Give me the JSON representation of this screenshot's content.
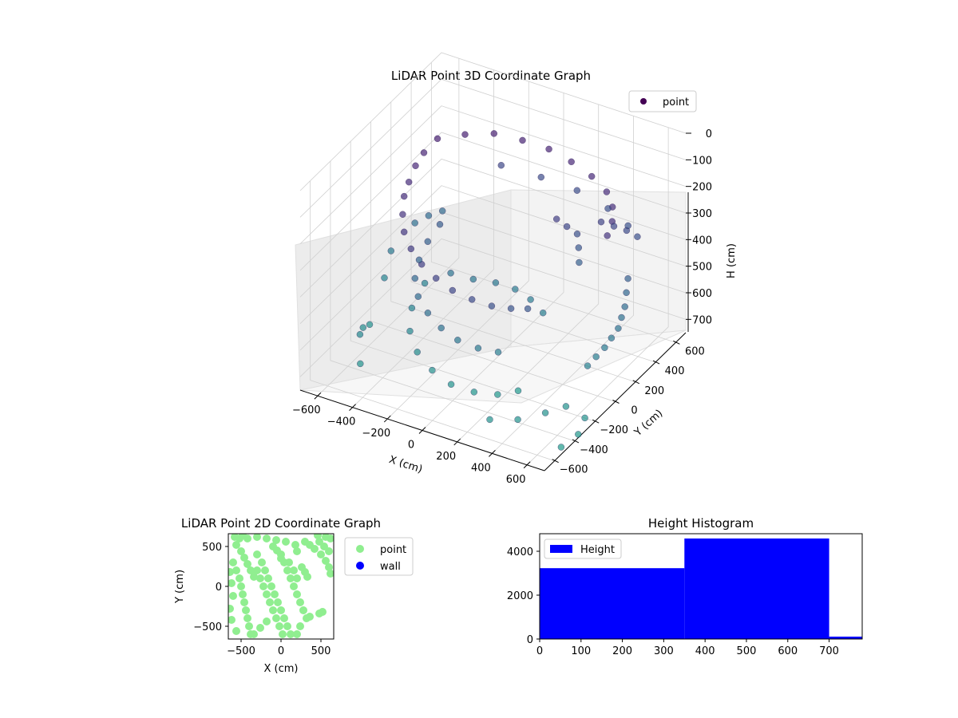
{
  "chart_data": [
    {
      "type": "scatter",
      "projection": "3d",
      "title": "LiDAR Point 3D Coordinate Graph",
      "xlabel": "X (cm)",
      "ylabel": "Y (cm)",
      "zlabel": "H (cm)",
      "xlim": [
        -700,
        700
      ],
      "ylim": [
        -700,
        700
      ],
      "zlim": [
        0,
        750
      ],
      "z_inverted": true,
      "xticks": [
        -600,
        -400,
        -200,
        0,
        200,
        400,
        600
      ],
      "yticks": [
        -600,
        -400,
        -200,
        0,
        200,
        400,
        600
      ],
      "zticks": [
        0,
        100,
        200,
        300,
        400,
        500,
        600,
        700
      ],
      "grid": true,
      "colormap": "viridis",
      "legend": {
        "position": "top-right",
        "entries": [
          "point"
        ]
      },
      "series": [
        {
          "name": "point",
          "color": "#440154",
          "points": [
            [
              -480,
              280,
              120
            ],
            [
              -500,
              180,
              140
            ],
            [
              -490,
              80,
              150
            ],
            [
              -470,
              -20,
              170
            ],
            [
              -440,
              -120,
              180
            ],
            [
              -390,
              -220,
              200
            ],
            [
              -330,
              -310,
              220
            ],
            [
              -250,
              -380,
              240
            ],
            [
              -160,
              -430,
              260
            ],
            [
              -60,
              -460,
              280
            ],
            [
              40,
              -470,
              300
            ],
            [
              140,
              -450,
              320
            ],
            [
              230,
              -410,
              340
            ],
            [
              300,
              -340,
              360
            ],
            [
              350,
              -260,
              380
            ],
            [
              -380,
              380,
              120
            ],
            [
              -260,
              460,
              120
            ],
            [
              -120,
              500,
              130
            ],
            [
              20,
              520,
              140
            ],
            [
              160,
              500,
              150
            ],
            [
              300,
              460,
              160
            ],
            [
              420,
              400,
              170
            ],
            [
              500,
              320,
              180
            ],
            [
              550,
              230,
              190
            ],
            [
              580,
              130,
              200
            ],
            [
              -420,
              200,
              400
            ],
            [
              -420,
              80,
              420
            ],
            [
              -400,
              -40,
              440
            ],
            [
              -360,
              -150,
              460
            ],
            [
              -290,
              -240,
              480
            ],
            [
              -200,
              -300,
              500
            ],
            [
              -100,
              -340,
              520
            ],
            [
              0,
              -350,
              540
            ],
            [
              100,
              -320,
              560
            ],
            [
              180,
              -260,
              580
            ],
            [
              -460,
              120,
              600
            ],
            [
              -430,
              -60,
              620
            ],
            [
              -360,
              -200,
              640
            ],
            [
              -260,
              -300,
              660
            ],
            [
              -140,
              -360,
              680
            ],
            [
              -20,
              -380,
              700
            ],
            [
              100,
              -360,
              710
            ],
            [
              200,
              -300,
              720
            ],
            [
              260,
              -200,
              730
            ],
            [
              -300,
              100,
              520
            ],
            [
              -200,
              150,
              540
            ],
            [
              -100,
              200,
              550
            ],
            [
              0,
              220,
              560
            ],
            [
              100,
              200,
              570
            ],
            [
              200,
              150,
              580
            ],
            [
              220,
              250,
              260
            ],
            [
              250,
              300,
              300
            ],
            [
              280,
              350,
              340
            ],
            [
              300,
              330,
              380
            ],
            [
              320,
              300,
              420
            ],
            [
              400,
              380,
              280
            ],
            [
              450,
              420,
              300
            ],
            [
              500,
              460,
              320
            ],
            [
              550,
              480,
              340
            ],
            [
              600,
              300,
              420
            ],
            [
              620,
              250,
              450
            ],
            [
              640,
              200,
              480
            ],
            [
              650,
              150,
              500
            ],
            [
              660,
              100,
              520
            ],
            [
              650,
              50,
              540
            ],
            [
              640,
              0,
              560
            ],
            [
              620,
              -50,
              580
            ],
            [
              600,
              -100,
              600
            ],
            [
              -650,
              350,
              500
            ],
            [
              -600,
              400,
              480
            ],
            [
              -550,
              450,
              470
            ],
            [
              -700,
              200,
              560
            ],
            [
              -680,
              100,
              620
            ],
            [
              -300,
              600,
              300
            ],
            [
              -100,
              650,
              320
            ],
            [
              100,
              660,
              330
            ],
            [
              300,
              620,
              340
            ],
            [
              450,
              560,
              350
            ],
            [
              300,
              -550,
              700
            ],
            [
              420,
              -480,
              700
            ],
            [
              520,
              -380,
              690
            ],
            [
              580,
              -280,
              690
            ],
            [
              -560,
              -350,
              640
            ],
            [
              -600,
              -250,
              660
            ],
            [
              -620,
              -150,
              690
            ],
            [
              -500,
              -450,
              700
            ],
            [
              700,
              -300,
              700
            ],
            [
              720,
              -400,
              720
            ],
            [
              680,
              -500,
              740
            ]
          ]
        }
      ]
    },
    {
      "type": "scatter",
      "title": "LiDAR Point 2D Coordinate Graph",
      "xlabel": "X (cm)",
      "ylabel": "Y (cm)",
      "xlim": [
        -660,
        660
      ],
      "ylim": [
        -660,
        660
      ],
      "xticks": [
        -500,
        0,
        500
      ],
      "yticks": [
        -500,
        0,
        500
      ],
      "grid": false,
      "legend": {
        "position": "right-outside",
        "entries": [
          "point",
          "wall"
        ]
      },
      "series": [
        {
          "name": "point",
          "color": "#90ee90",
          "points": [
            [
              -420,
              600
            ],
            [
              -300,
              620
            ],
            [
              -180,
              600
            ],
            [
              -60,
              580
            ],
            [
              60,
              560
            ],
            [
              180,
              520
            ],
            [
              -560,
              520
            ],
            [
              -500,
              440
            ],
            [
              -460,
              360
            ],
            [
              -420,
              280
            ],
            [
              -380,
              200
            ],
            [
              -340,
              120
            ],
            [
              -600,
              300
            ],
            [
              -560,
              200
            ],
            [
              -520,
              100
            ],
            [
              -500,
              0
            ],
            [
              -480,
              -100
            ],
            [
              -460,
              -200
            ],
            [
              -440,
              -300
            ],
            [
              -420,
              -400
            ],
            [
              -400,
              -500
            ],
            [
              -380,
              -600
            ],
            [
              -300,
              400
            ],
            [
              -240,
              300
            ],
            [
              -200,
              200
            ],
            [
              -160,
              100
            ],
            [
              -120,
              0
            ],
            [
              -80,
              -100
            ],
            [
              -40,
              -200
            ],
            [
              0,
              -300
            ],
            [
              40,
              -400
            ],
            [
              80,
              -500
            ],
            [
              120,
              -600
            ],
            [
              -300,
              200
            ],
            [
              -260,
              100
            ],
            [
              -220,
              0
            ],
            [
              -180,
              -100
            ],
            [
              -140,
              -200
            ],
            [
              -100,
              -300
            ],
            [
              -60,
              -400
            ],
            [
              -20,
              -500
            ],
            [
              20,
              -600
            ],
            [
              -340,
              -600
            ],
            [
              -260,
              -520
            ],
            [
              -180,
              -440
            ],
            [
              0,
              400
            ],
            [
              40,
              300
            ],
            [
              80,
              200
            ],
            [
              120,
              100
            ],
            [
              160,
              0
            ],
            [
              200,
              -100
            ],
            [
              240,
              -200
            ],
            [
              280,
              -300
            ],
            [
              320,
              -400
            ],
            [
              240,
              -500
            ],
            [
              200,
              -600
            ],
            [
              -100,
              500
            ],
            [
              -50,
              450
            ],
            [
              0,
              350
            ],
            [
              100,
              300
            ],
            [
              160,
              200
            ],
            [
              200,
              100
            ],
            [
              260,
              240
            ],
            [
              300,
              180
            ],
            [
              330,
              120
            ],
            [
              200,
              440
            ],
            [
              480,
              560
            ],
            [
              540,
              500
            ],
            [
              600,
              440
            ],
            [
              620,
              600
            ],
            [
              560,
              620
            ],
            [
              460,
              640
            ],
            [
              300,
              560
            ],
            [
              360,
              520
            ],
            [
              420,
              470
            ],
            [
              500,
              400
            ],
            [
              560,
              320
            ],
            [
              600,
              240
            ],
            [
              620,
              160
            ],
            [
              520,
              -320
            ],
            [
              480,
              -340
            ],
            [
              360,
              -380
            ],
            [
              -640,
              -280
            ],
            [
              -620,
              -420
            ],
            [
              -560,
              -560
            ],
            [
              -620,
              40
            ],
            [
              -600,
              -120
            ],
            [
              -640,
              180
            ],
            [
              -580,
              620
            ],
            [
              -520,
              600
            ],
            [
              -480,
              640
            ]
          ]
        },
        {
          "name": "wall",
          "color": "#0000ff",
          "points": []
        }
      ]
    },
    {
      "type": "bar",
      "subtype": "histogram",
      "title": "Height Histogram",
      "xlim": [
        0,
        780
      ],
      "ylim": [
        0,
        4800
      ],
      "xticks": [
        0,
        100,
        200,
        300,
        400,
        500,
        600,
        700
      ],
      "yticks": [
        0,
        2000,
        4000
      ],
      "grid": false,
      "legend": {
        "position": "top-left",
        "entries": [
          "Height"
        ]
      },
      "series": [
        {
          "name": "Height",
          "color": "#0000ff",
          "bins": [
            [
              0,
              350
            ],
            [
              350,
              700
            ],
            [
              700,
              1050
            ]
          ],
          "values": [
            3230,
            4580,
            110
          ]
        }
      ]
    }
  ]
}
